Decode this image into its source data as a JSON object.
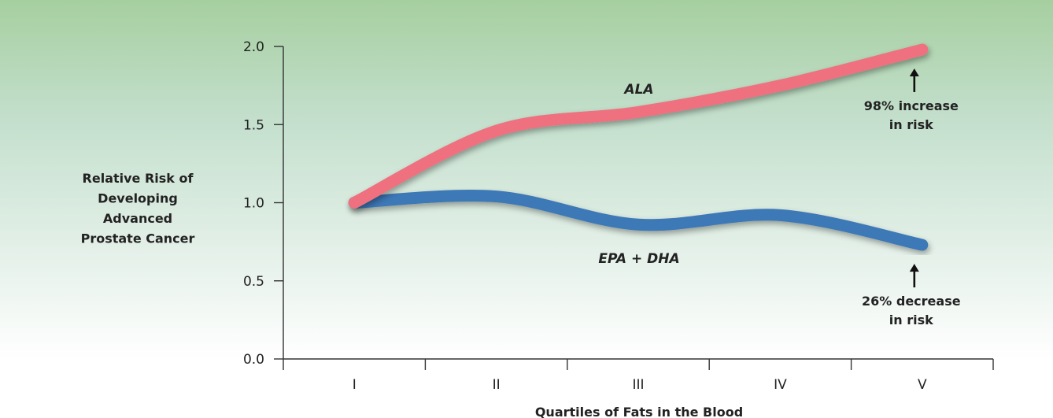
{
  "chart_data": {
    "type": "line",
    "categories": [
      "I",
      "II",
      "III",
      "IV",
      "V"
    ],
    "ylabel": "Relative Risk of Developing Advanced Prostate Cancer",
    "ylabel_lines": [
      "Relative Risk of",
      "Developing",
      "Advanced",
      "Prostate Cancer"
    ],
    "xlabel": "Quartiles of Fats in the Blood",
    "ylim": [
      0,
      2.0
    ],
    "yticks": [
      "0.0",
      "0.5",
      "1.0",
      "1.5",
      "2.0"
    ],
    "grid": false,
    "series": [
      {
        "name": "ALA",
        "color": "#ef6f7e",
        "values": [
          1.0,
          1.46,
          1.58,
          1.75,
          1.98
        ]
      },
      {
        "name": "EPA + DHA",
        "color": "#3d78b7",
        "values": [
          1.0,
          1.04,
          0.86,
          0.92,
          0.73
        ]
      }
    ],
    "annotations": [
      {
        "series": "ALA",
        "category": "V",
        "lines": [
          "98% increase",
          "in risk"
        ]
      },
      {
        "series": "EPA + DHA",
        "category": "V",
        "lines": [
          "26% decrease",
          "in risk"
        ]
      }
    ]
  }
}
